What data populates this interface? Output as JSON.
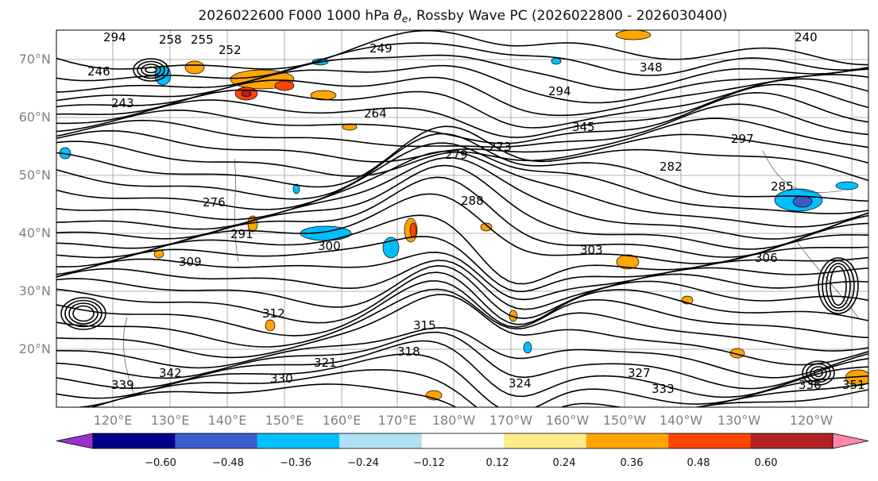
{
  "title": {
    "date": "2026022600",
    "forecast": "F000",
    "level": "1000 hPa",
    "theta": "θ",
    "theta_sub": "e",
    "suffix": ", Rossby Wave PC (2026022800 - 2026030400)"
  },
  "map": {
    "lat_labels": [
      "70°N",
      "60°N",
      "50°N",
      "40°N",
      "30°N",
      "20°N"
    ],
    "lon_labels": [
      "120°E",
      "130°E",
      "140°E",
      "150°E",
      "160°E",
      "170°E",
      "180°W",
      "170°W",
      "160°W",
      "150°W",
      "140°W",
      "130°W",
      "120°W"
    ],
    "contour_labels": [
      "294",
      "258",
      "255",
      "252",
      "249",
      "246",
      "243",
      "240",
      "264",
      "273",
      "276",
      "279",
      "282",
      "285",
      "288",
      "291",
      "294",
      "297",
      "300",
      "303",
      "306",
      "309",
      "312",
      "315",
      "318",
      "321",
      "324",
      "327",
      "330",
      "333",
      "336",
      "339",
      "342",
      "345",
      "348",
      "351"
    ]
  },
  "colorbar": {
    "ticks": [
      "−0.60",
      "−0.48",
      "−0.36",
      "−0.24",
      "−0.12",
      "0.12",
      "0.24",
      "0.36",
      "0.48",
      "0.60"
    ],
    "colors": [
      "#9932cc",
      "#00008b",
      "#3a5fcd",
      "#00bfff",
      "#b0e0f6",
      "#ffffff",
      "#ffeb8a",
      "#ffa500",
      "#ff4500",
      "#b22222",
      "#ff88aa"
    ]
  }
}
